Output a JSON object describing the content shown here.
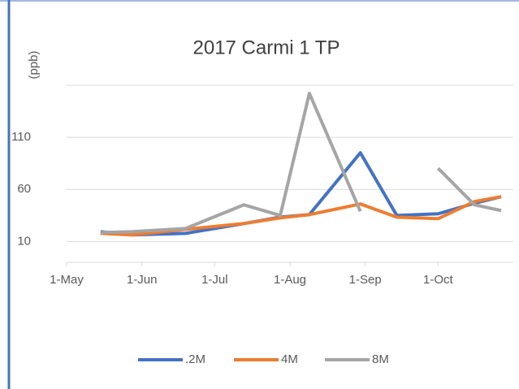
{
  "chart_data": {
    "type": "line",
    "title": "2017 Carmi 1 TP",
    "y_label": "(ppb)",
    "x": [
      "15-May",
      "28-May",
      "19-Jun",
      "13-Jul",
      "28-Jul",
      "9-Aug",
      "30-Aug",
      "14-Sep",
      "1-Oct",
      "16-Oct",
      "27-Oct"
    ],
    "series": [
      {
        "name": ".2M",
        "color": "#4472c4",
        "values": [
          19.4,
          16.3,
          17.8,
          27.2,
          33.4,
          35.8,
          95.2,
          35,
          36.6,
          46.7,
          53
        ]
      },
      {
        "name": "4M",
        "color": "#ed7d31",
        "values": [
          17.8,
          16.3,
          21.7,
          27.2,
          32.7,
          35.8,
          46,
          33.4,
          31.9,
          48.3,
          53
        ]
      },
      {
        "name": "8M",
        "color": "#a5a5a5",
        "values": [
          18.6,
          19.4,
          22.5,
          45.2,
          35,
          152.2,
          38.9,
          null,
          80.3,
          45.2,
          39.7
        ]
      }
    ],
    "xlim": [
      "1-May",
      "1-Nov"
    ],
    "xticks": [
      "1-May",
      "1-Jun",
      "1-Jul",
      "1-Aug",
      "1-Sep",
      "1-Oct"
    ],
    "ylim": [
      -10,
      160
    ],
    "yticks": [
      10,
      60,
      110
    ],
    "grid": true,
    "legend": "bottom"
  }
}
